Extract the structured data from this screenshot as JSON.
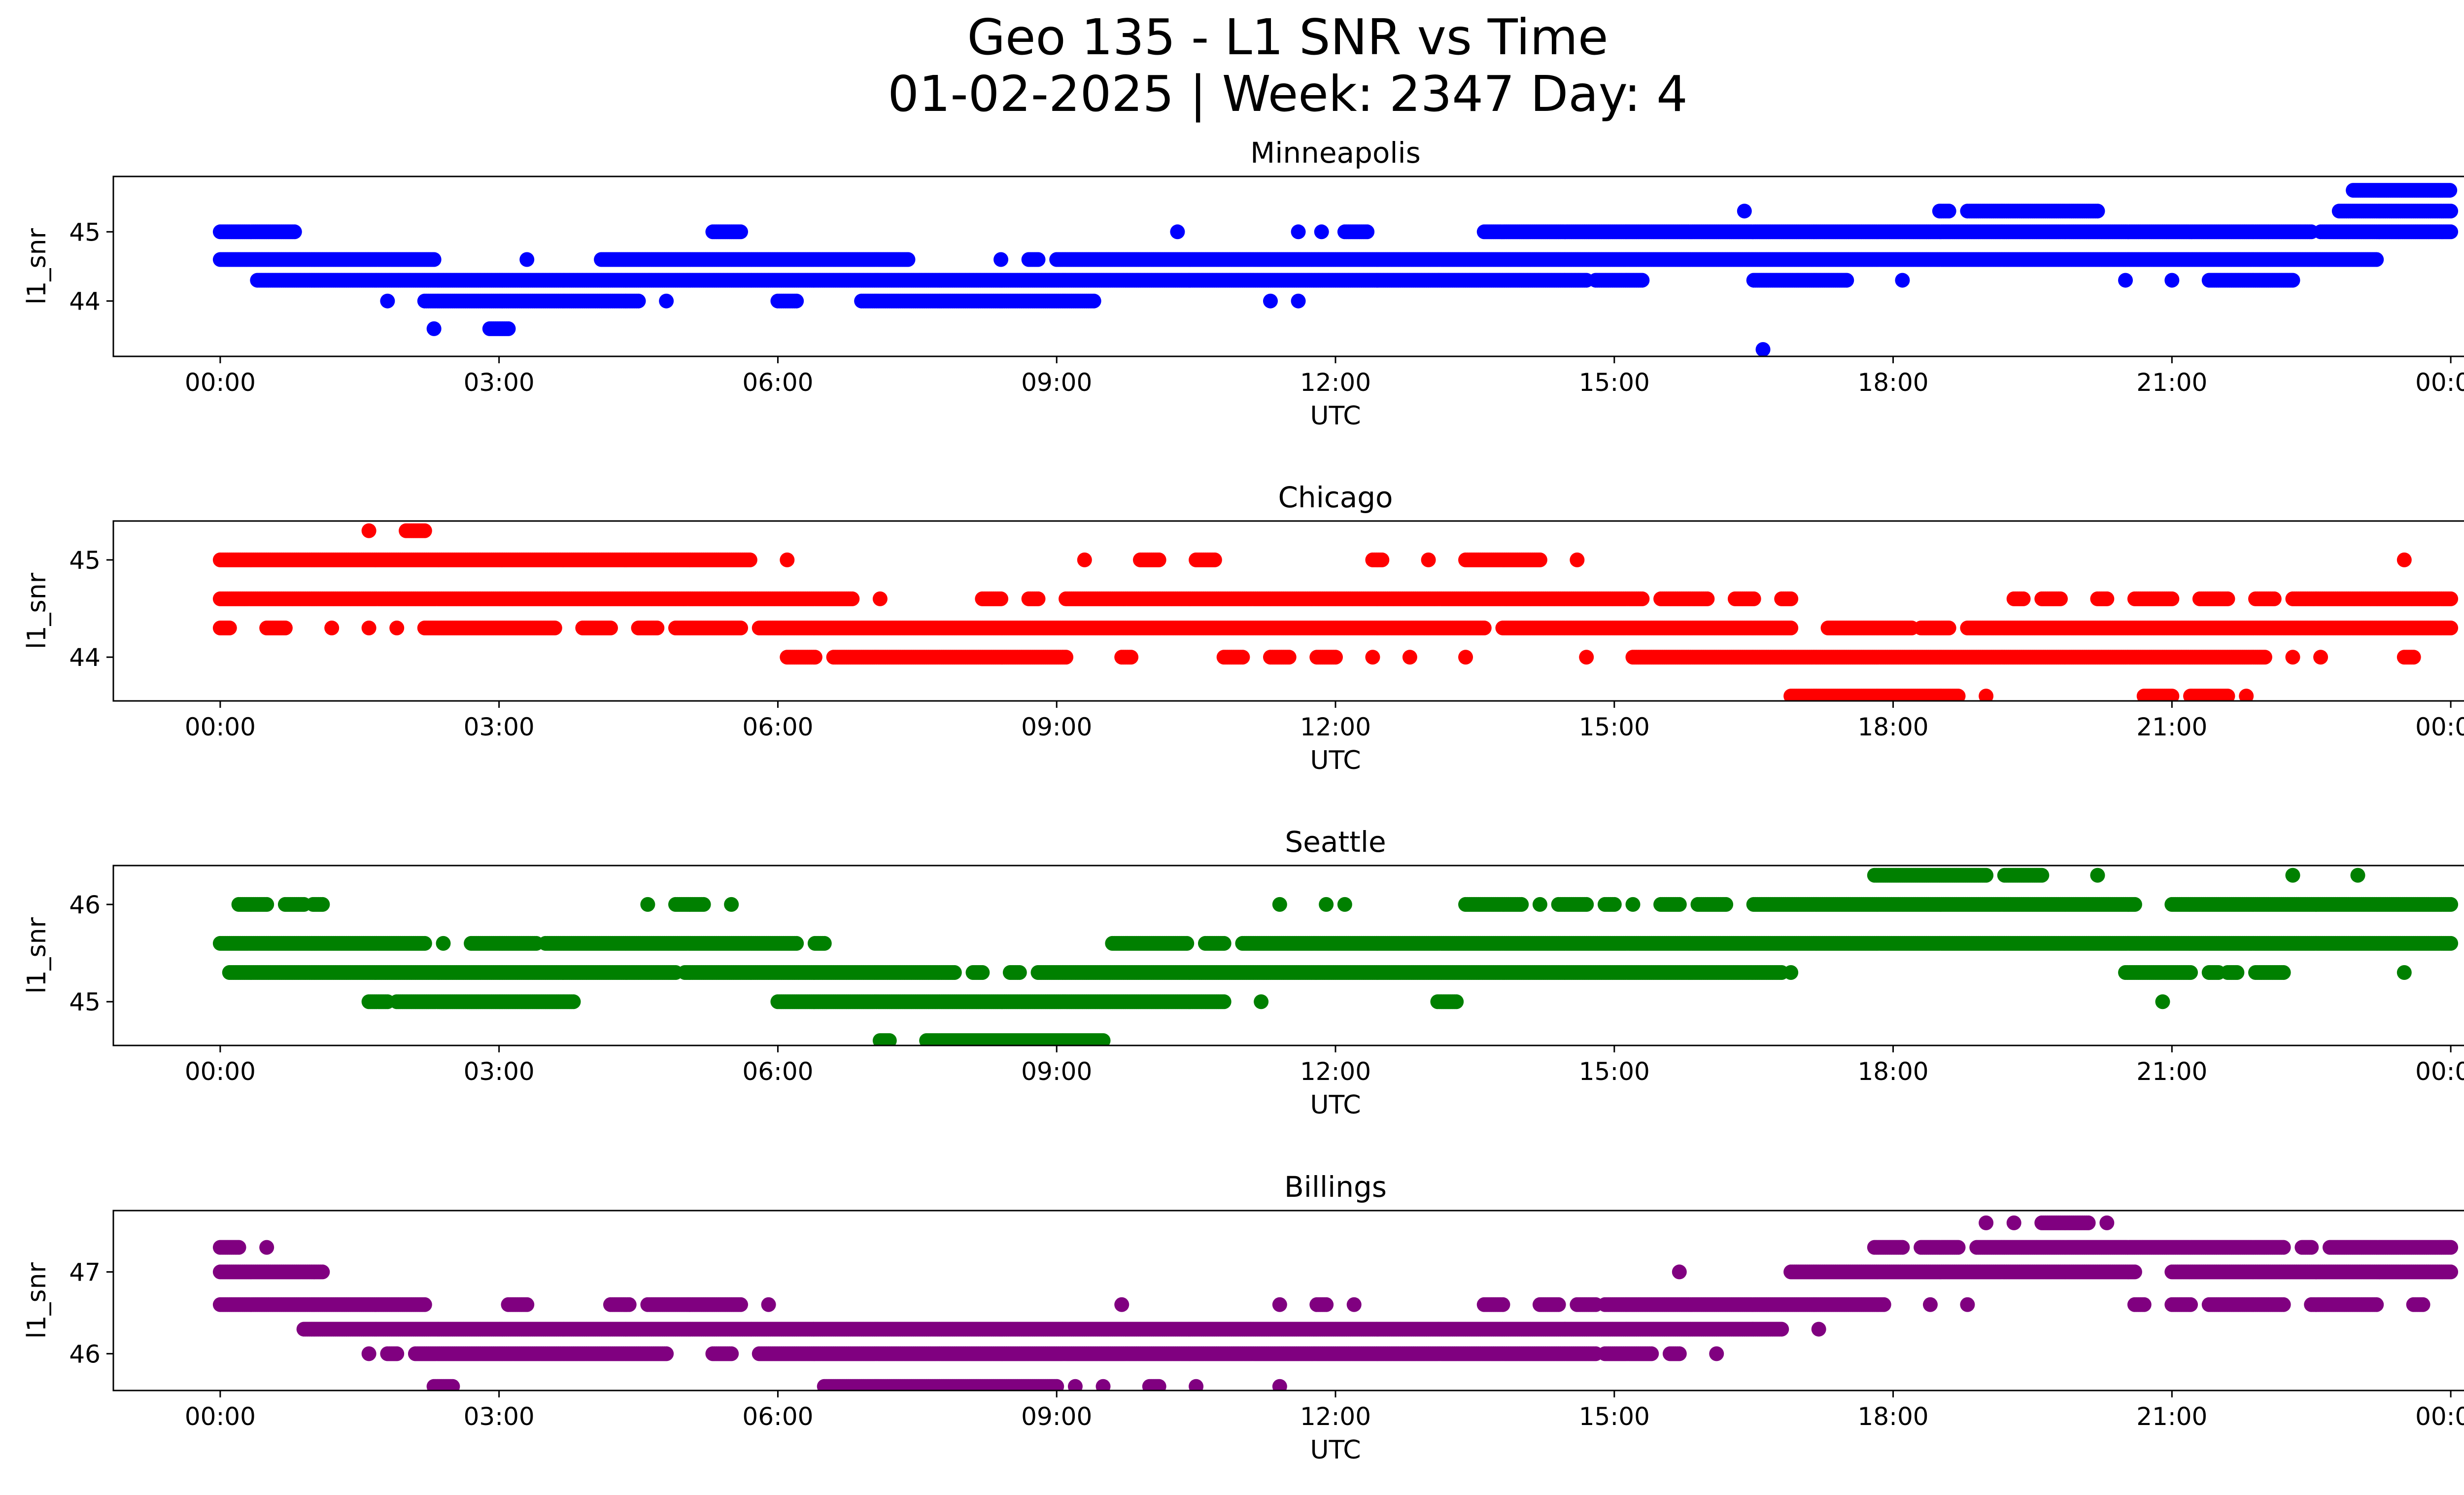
{
  "figure": {
    "title_line1": "Geo 135 - L1 SNR vs Time",
    "title_line2": "01-02-2025 | Week: 2347 Day: 4"
  },
  "chart_data": [
    {
      "type": "scatter",
      "title": "Minneapolis",
      "xlabel": "UTC",
      "ylabel": "l1_snr",
      "color": "#0000ff",
      "x_ticks": [
        "00:00",
        "03:00",
        "06:00",
        "09:00",
        "12:00",
        "15:00",
        "18:00",
        "21:00",
        "00:00"
      ],
      "y_ticks": [
        44,
        45
      ],
      "xlim_hours": [
        -1.15,
        25.15
      ],
      "ylim": [
        43.2,
        45.8
      ],
      "levels": [
        {
          "y": 45.6,
          "segments": [
            [
              22.95,
              24.0
            ]
          ]
        },
        {
          "y": 45.3,
          "segments": [
            [
              16.4,
              16.4
            ],
            [
              18.5,
              18.6
            ],
            [
              18.8,
              20.2
            ],
            [
              22.8,
              24.0
            ]
          ]
        },
        {
          "y": 45.0,
          "segments": [
            [
              0.0,
              0.8
            ],
            [
              5.3,
              5.6
            ],
            [
              10.3,
              10.3
            ],
            [
              11.6,
              11.6
            ],
            [
              11.85,
              11.85
            ],
            [
              12.1,
              12.35
            ],
            [
              13.6,
              22.5
            ],
            [
              22.6,
              24.0
            ]
          ]
        },
        {
          "y": 44.6,
          "segments": [
            [
              0.0,
              2.3
            ],
            [
              3.3,
              3.3
            ],
            [
              4.1,
              7.4
            ],
            [
              8.4,
              8.4
            ],
            [
              8.7,
              8.8
            ],
            [
              9.0,
              23.2
            ]
          ]
        },
        {
          "y": 44.3,
          "segments": [
            [
              0.4,
              14.7
            ],
            [
              14.8,
              15.3
            ],
            [
              16.5,
              17.5
            ],
            [
              18.1,
              18.1
            ],
            [
              20.5,
              20.5
            ],
            [
              21.0,
              21.0
            ],
            [
              21.4,
              22.3
            ]
          ]
        },
        {
          "y": 44.0,
          "segments": [
            [
              1.8,
              1.8
            ],
            [
              2.2,
              4.5
            ],
            [
              4.8,
              4.8
            ],
            [
              6.0,
              6.2
            ],
            [
              6.9,
              9.4
            ],
            [
              11.3,
              11.3
            ],
            [
              11.6,
              11.6
            ]
          ]
        },
        {
          "y": 43.6,
          "segments": [
            [
              2.3,
              2.3
            ],
            [
              2.9,
              3.1
            ]
          ]
        },
        {
          "y": 43.3,
          "segments": [
            [
              16.6,
              16.6
            ]
          ]
        }
      ]
    },
    {
      "type": "scatter",
      "title": "Chicago",
      "xlabel": "UTC",
      "ylabel": "l1_snr",
      "color": "#ff0000",
      "x_ticks": [
        "00:00",
        "03:00",
        "06:00",
        "09:00",
        "12:00",
        "15:00",
        "18:00",
        "21:00",
        "00:00"
      ],
      "y_ticks": [
        44,
        45
      ],
      "xlim_hours": [
        -1.15,
        25.15
      ],
      "ylim": [
        43.55,
        45.4
      ],
      "levels": [
        {
          "y": 45.3,
          "segments": [
            [
              1.6,
              1.6
            ],
            [
              2.0,
              2.2
            ]
          ]
        },
        {
          "y": 45.0,
          "segments": [
            [
              0.0,
              5.7
            ],
            [
              6.1,
              6.1
            ],
            [
              9.3,
              9.3
            ],
            [
              9.9,
              10.1
            ],
            [
              10.5,
              10.7
            ],
            [
              12.4,
              12.5
            ],
            [
              13.0,
              13.0
            ],
            [
              13.4,
              14.2
            ],
            [
              14.6,
              14.6
            ],
            [
              23.5,
              23.5
            ]
          ]
        },
        {
          "y": 44.6,
          "segments": [
            [
              0.0,
              6.8
            ],
            [
              7.1,
              7.1
            ],
            [
              8.2,
              8.4
            ],
            [
              8.7,
              8.8
            ],
            [
              9.1,
              15.3
            ],
            [
              15.5,
              16.0
            ],
            [
              16.3,
              16.5
            ],
            [
              16.8,
              16.9
            ],
            [
              19.3,
              19.4
            ],
            [
              19.6,
              19.8
            ],
            [
              20.2,
              20.3
            ],
            [
              20.6,
              21.0
            ],
            [
              21.3,
              21.6
            ],
            [
              21.9,
              22.1
            ],
            [
              22.3,
              24.0
            ]
          ]
        },
        {
          "y": 44.3,
          "segments": [
            [
              0.0,
              0.1
            ],
            [
              0.5,
              0.7
            ],
            [
              1.2,
              1.2
            ],
            [
              1.6,
              1.6
            ],
            [
              1.9,
              1.9
            ],
            [
              2.2,
              3.6
            ],
            [
              3.9,
              4.2
            ],
            [
              4.5,
              4.7
            ],
            [
              4.9,
              5.6
            ],
            [
              5.8,
              13.6
            ],
            [
              13.8,
              16.9
            ],
            [
              17.3,
              18.2
            ],
            [
              18.3,
              18.6
            ],
            [
              18.8,
              24.0
            ]
          ]
        },
        {
          "y": 44.0,
          "segments": [
            [
              6.1,
              6.4
            ],
            [
              6.6,
              9.1
            ],
            [
              9.7,
              9.8
            ],
            [
              10.8,
              11.0
            ],
            [
              11.3,
              11.5
            ],
            [
              11.8,
              12.0
            ],
            [
              12.4,
              12.4
            ],
            [
              12.8,
              12.8
            ],
            [
              13.4,
              13.4
            ],
            [
              14.7,
              14.7
            ],
            [
              15.2,
              22.0
            ],
            [
              22.3,
              22.3
            ],
            [
              22.6,
              22.6
            ],
            [
              23.5,
              23.6
            ]
          ]
        },
        {
          "y": 43.6,
          "segments": [
            [
              16.9,
              18.7
            ],
            [
              19.0,
              19.0
            ],
            [
              20.7,
              21.0
            ],
            [
              21.2,
              21.6
            ],
            [
              21.8,
              21.8
            ]
          ]
        }
      ]
    },
    {
      "type": "scatter",
      "title": "Seattle",
      "xlabel": "UTC",
      "ylabel": "l1_snr",
      "color": "#008000",
      "x_ticks": [
        "00:00",
        "03:00",
        "06:00",
        "09:00",
        "12:00",
        "15:00",
        "18:00",
        "21:00",
        "00:00"
      ],
      "y_ticks": [
        45,
        46
      ],
      "xlim_hours": [
        -1.15,
        25.15
      ],
      "ylim": [
        44.55,
        46.4
      ],
      "levels": [
        {
          "y": 46.3,
          "segments": [
            [
              17.8,
              19.0
            ],
            [
              19.2,
              19.6
            ],
            [
              20.2,
              20.2
            ],
            [
              22.3,
              22.3
            ],
            [
              23.0,
              23.0
            ]
          ]
        },
        {
          "y": 46.0,
          "segments": [
            [
              0.2,
              0.5
            ],
            [
              0.7,
              0.9
            ],
            [
              1.0,
              1.1
            ],
            [
              4.6,
              4.6
            ],
            [
              4.9,
              5.2
            ],
            [
              5.5,
              5.5
            ],
            [
              11.4,
              11.4
            ],
            [
              11.9,
              11.9
            ],
            [
              12.1,
              12.1
            ],
            [
              13.4,
              14.0
            ],
            [
              14.2,
              14.2
            ],
            [
              14.4,
              14.7
            ],
            [
              14.9,
              15.0
            ],
            [
              15.2,
              15.2
            ],
            [
              15.5,
              15.7
            ],
            [
              15.9,
              16.2
            ],
            [
              16.5,
              20.6
            ],
            [
              21.0,
              24.0
            ]
          ]
        },
        {
          "y": 45.6,
          "segments": [
            [
              0.0,
              2.2
            ],
            [
              2.4,
              2.4
            ],
            [
              2.7,
              3.4
            ],
            [
              3.5,
              6.2
            ],
            [
              6.4,
              6.5
            ],
            [
              9.6,
              10.4
            ],
            [
              10.6,
              10.8
            ],
            [
              11.0,
              24.0
            ]
          ]
        },
        {
          "y": 45.3,
          "segments": [
            [
              0.1,
              4.9
            ],
            [
              5.0,
              7.9
            ],
            [
              8.1,
              8.2
            ],
            [
              8.5,
              8.6
            ],
            [
              8.8,
              16.8
            ],
            [
              16.9,
              16.9
            ],
            [
              20.5,
              21.2
            ],
            [
              21.4,
              21.5
            ],
            [
              21.6,
              21.7
            ],
            [
              21.9,
              22.2
            ],
            [
              23.5,
              23.5
            ]
          ]
        },
        {
          "y": 45.0,
          "segments": [
            [
              1.6,
              1.8
            ],
            [
              1.9,
              3.8
            ],
            [
              6.0,
              10.8
            ],
            [
              11.2,
              11.2
            ],
            [
              13.1,
              13.3
            ],
            [
              20.9,
              20.9
            ]
          ]
        },
        {
          "y": 44.6,
          "segments": [
            [
              7.1,
              7.2
            ],
            [
              7.6,
              9.5
            ]
          ]
        }
      ]
    },
    {
      "type": "scatter",
      "title": "Billings",
      "xlabel": "UTC",
      "ylabel": "l1_snr",
      "color": "#800080",
      "x_ticks": [
        "00:00",
        "03:00",
        "06:00",
        "09:00",
        "12:00",
        "15:00",
        "18:00",
        "21:00",
        "00:00"
      ],
      "y_ticks": [
        46,
        47
      ],
      "xlim_hours": [
        -1.15,
        25.15
      ],
      "ylim": [
        45.55,
        47.75
      ],
      "levels": [
        {
          "y": 47.6,
          "segments": [
            [
              19.0,
              19.0
            ],
            [
              19.3,
              19.3
            ],
            [
              19.6,
              20.1
            ],
            [
              20.3,
              20.3
            ]
          ]
        },
        {
          "y": 47.3,
          "segments": [
            [
              0.0,
              0.2
            ],
            [
              0.5,
              0.5
            ],
            [
              17.8,
              18.1
            ],
            [
              18.3,
              18.7
            ],
            [
              18.9,
              22.2
            ],
            [
              22.4,
              22.5
            ],
            [
              22.7,
              24.0
            ]
          ]
        },
        {
          "y": 47.0,
          "segments": [
            [
              0.0,
              1.1
            ],
            [
              15.7,
              15.7
            ],
            [
              16.9,
              20.6
            ],
            [
              21.0,
              24.0
            ]
          ]
        },
        {
          "y": 46.6,
          "segments": [
            [
              0.0,
              2.2
            ],
            [
              3.1,
              3.3
            ],
            [
              4.2,
              4.4
            ],
            [
              4.6,
              5.6
            ],
            [
              5.9,
              5.9
            ],
            [
              9.7,
              9.7
            ],
            [
              11.4,
              11.4
            ],
            [
              11.8,
              11.9
            ],
            [
              12.2,
              12.2
            ],
            [
              13.6,
              13.8
            ],
            [
              14.2,
              14.4
            ],
            [
              14.6,
              14.8
            ],
            [
              14.9,
              17.9
            ],
            [
              18.4,
              18.4
            ],
            [
              18.8,
              18.8
            ],
            [
              20.6,
              20.7
            ],
            [
              21.0,
              21.2
            ],
            [
              21.4,
              22.2
            ],
            [
              22.5,
              23.2
            ],
            [
              23.6,
              23.7
            ]
          ]
        },
        {
          "y": 46.3,
          "segments": [
            [
              0.9,
              16.8
            ],
            [
              17.2,
              17.2
            ]
          ]
        },
        {
          "y": 46.0,
          "segments": [
            [
              1.6,
              1.6
            ],
            [
              1.8,
              1.9
            ],
            [
              2.1,
              4.8
            ],
            [
              5.3,
              5.5
            ],
            [
              5.8,
              14.8
            ],
            [
              14.9,
              15.4
            ],
            [
              15.6,
              15.7
            ],
            [
              16.1,
              16.1
            ]
          ]
        },
        {
          "y": 45.6,
          "segments": [
            [
              2.3,
              2.5
            ],
            [
              6.5,
              9.0
            ],
            [
              9.2,
              9.2
            ],
            [
              9.5,
              9.5
            ],
            [
              10.0,
              10.1
            ],
            [
              10.5,
              10.5
            ],
            [
              11.4,
              11.4
            ]
          ]
        }
      ]
    }
  ]
}
